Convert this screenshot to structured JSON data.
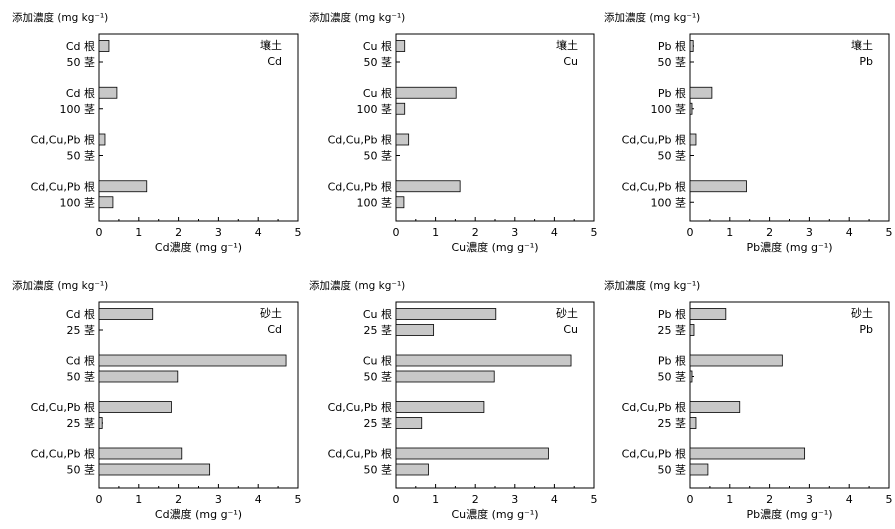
{
  "chart_data": [
    {
      "type": "bar",
      "orientation": "horizontal",
      "title": "添加濃度 (mg kg⁻¹)",
      "xlabel": "Cd濃度 (mg g⁻¹)",
      "xlim": [
        0,
        5
      ],
      "xticks": [
        "0",
        "1",
        "2",
        "3",
        "4",
        "5"
      ],
      "tag": [
        "壤土",
        "Cd"
      ],
      "categories": [
        {
          "label1": "Cd 根",
          "label2": "50 茎",
          "values": [
            0.25,
            null
          ]
        },
        {
          "label1": "Cd 根",
          "label2": "100 茎",
          "values": [
            0.45,
            null
          ]
        },
        {
          "label1": "Cd,Cu,Pb 根",
          "label2": "50 茎",
          "values": [
            0.15,
            null
          ]
        },
        {
          "label1": "Cd,Cu,Pb 根",
          "label2": "100 茎",
          "values": [
            1.2,
            0.35
          ]
        }
      ]
    },
    {
      "type": "bar",
      "orientation": "horizontal",
      "title": "添加濃度 (mg kg⁻¹)",
      "xlabel": "Cu濃度 (mg g⁻¹)",
      "xlim": [
        0,
        5
      ],
      "xticks": [
        "0",
        "1",
        "2",
        "3",
        "4",
        "5"
      ],
      "tag": [
        "壤土",
        "Cu"
      ],
      "categories": [
        {
          "label1": "Cu 根",
          "label2": "50 茎",
          "values": [
            0.22,
            null
          ]
        },
        {
          "label1": "Cu 根",
          "label2": "100 茎",
          "values": [
            1.52,
            0.22
          ]
        },
        {
          "label1": "Cd,Cu,Pb 根",
          "label2": "50 茎",
          "values": [
            0.32,
            null
          ]
        },
        {
          "label1": "Cd,Cu,Pb 根",
          "label2": "100 茎",
          "values": [
            1.62,
            0.2
          ]
        }
      ]
    },
    {
      "type": "bar",
      "orientation": "horizontal",
      "title": "添加濃度 (mg kg⁻¹)",
      "xlabel": "Pb濃度 (mg g⁻¹)",
      "xlim": [
        0,
        5
      ],
      "xticks": [
        "0",
        "1",
        "2",
        "3",
        "4",
        "5"
      ],
      "tag": [
        "壤土",
        "Pb"
      ],
      "categories": [
        {
          "label1": "Pb 根",
          "label2": "50 茎",
          "values": [
            0.08,
            null
          ]
        },
        {
          "label1": "Pb 根",
          "label2": "100 茎",
          "values": [
            0.55,
            0.05
          ]
        },
        {
          "label1": "Cd,Cu,Pb 根",
          "label2": "50 茎",
          "values": [
            0.15,
            null
          ]
        },
        {
          "label1": "Cd,Cu,Pb 根",
          "label2": "100 茎",
          "values": [
            1.42,
            null
          ]
        }
      ]
    },
    {
      "type": "bar",
      "orientation": "horizontal",
      "title": "添加濃度 (mg kg⁻¹)",
      "xlabel": "Cd濃度 (mg g⁻¹)",
      "xlim": [
        0,
        5
      ],
      "xticks": [
        "0",
        "1",
        "2",
        "3",
        "4",
        "5"
      ],
      "tag": [
        "砂土",
        "Cd"
      ],
      "categories": [
        {
          "label1": "Cd 根",
          "label2": "25 茎",
          "values": [
            1.35,
            null
          ]
        },
        {
          "label1": "Cd 根",
          "label2": "50 茎",
          "values": [
            4.7,
            1.98
          ]
        },
        {
          "label1": "Cd,Cu,Pb 根",
          "label2": "25 茎",
          "values": [
            1.82,
            0.08
          ]
        },
        {
          "label1": "Cd,Cu,Pb 根",
          "label2": "50 茎",
          "values": [
            2.08,
            2.78
          ]
        }
      ]
    },
    {
      "type": "bar",
      "orientation": "horizontal",
      "title": "添加濃度 (mg kg⁻¹)",
      "xlabel": "Cu濃度 (mg g⁻¹)",
      "xlim": [
        0,
        5
      ],
      "xticks": [
        "0",
        "1",
        "2",
        "3",
        "4",
        "5"
      ],
      "tag": [
        "砂土",
        "Cu"
      ],
      "categories": [
        {
          "label1": "Cu 根",
          "label2": "25 茎",
          "values": [
            2.52,
            0.95
          ]
        },
        {
          "label1": "Cu 根",
          "label2": "50 茎",
          "values": [
            4.42,
            2.48
          ]
        },
        {
          "label1": "Cd,Cu,Pb 根",
          "label2": "25 茎",
          "values": [
            2.22,
            0.65
          ]
        },
        {
          "label1": "Cd,Cu,Pb 根",
          "label2": "50 茎",
          "values": [
            3.85,
            0.82
          ]
        }
      ]
    },
    {
      "type": "bar",
      "orientation": "horizontal",
      "title": "添加濃度 (mg kg⁻¹)",
      "xlabel": "Pb濃度 (mg g⁻¹)",
      "xlim": [
        0,
        5
      ],
      "xticks": [
        "0",
        "1",
        "2",
        "3",
        "4",
        "5"
      ],
      "tag": [
        "砂土",
        "Pb"
      ],
      "categories": [
        {
          "label1": "Pb 根",
          "label2": "25 茎",
          "values": [
            0.9,
            0.1
          ]
        },
        {
          "label1": "Pb 根",
          "label2": "50 茎",
          "values": [
            2.32,
            0.05
          ]
        },
        {
          "label1": "Cd,Cu,Pb 根",
          "label2": "25 茎",
          "values": [
            1.25,
            0.15
          ]
        },
        {
          "label1": "Cd,Cu,Pb 根",
          "label2": "50 茎",
          "values": [
            2.88,
            0.45
          ]
        }
      ]
    }
  ],
  "colors": {
    "bar_fill": "#c8c8c8",
    "bar_stroke": "#000000",
    "axis": "#000000"
  }
}
